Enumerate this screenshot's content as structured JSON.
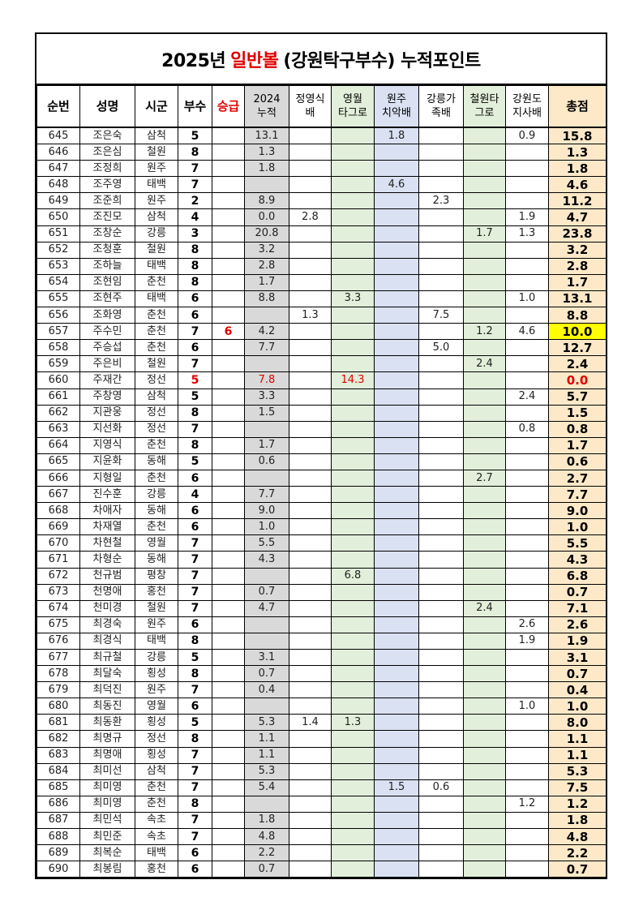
{
  "title": {
    "year": "2025년",
    "highlight": "일반볼",
    "rest": "(강원탁구부수) 누적포인트"
  },
  "colors": {
    "accent_red": "#e00000",
    "col_2024": "#d9d9d9",
    "col_green": "#e2efda",
    "col_blue": "#d9e1f2",
    "col_total": "#fde9c8",
    "highlight_yellow": "#ffff00"
  },
  "headers": [
    {
      "line1": "순번",
      "line2": ""
    },
    {
      "line1": "성명",
      "line2": ""
    },
    {
      "line1": "시군",
      "line2": ""
    },
    {
      "line1": "부수",
      "line2": ""
    },
    {
      "line1": "승급",
      "line2": ""
    },
    {
      "line1": "2024",
      "line2": "누적"
    },
    {
      "line1": "정영식",
      "line2": "배"
    },
    {
      "line1": "영월",
      "line2": "타그로"
    },
    {
      "line1": "원주",
      "line2": "치악배"
    },
    {
      "line1": "강릉가",
      "line2": "족배"
    },
    {
      "line1": "철원타",
      "line2": "그로"
    },
    {
      "line1": "강원도",
      "line2": "지사배"
    },
    {
      "line1": "총점",
      "line2": ""
    }
  ],
  "rows": [
    [
      "645",
      "조은숙",
      "삼척",
      "5",
      "",
      "13.1",
      "",
      "",
      "1.8",
      "",
      "",
      "0.9",
      "15.8"
    ],
    [
      "646",
      "조은심",
      "철원",
      "8",
      "",
      "1.3",
      "",
      "",
      "",
      "",
      "",
      "",
      "1.3"
    ],
    [
      "647",
      "조정희",
      "원주",
      "7",
      "",
      "1.8",
      "",
      "",
      "",
      "",
      "",
      "",
      "1.8"
    ],
    [
      "648",
      "조주영",
      "태백",
      "7",
      "",
      "",
      "",
      "",
      "4.6",
      "",
      "",
      "",
      "4.6"
    ],
    [
      "649",
      "조준희",
      "원주",
      "2",
      "",
      "8.9",
      "",
      "",
      "",
      "2.3",
      "",
      "",
      "11.2"
    ],
    [
      "650",
      "조진모",
      "삼척",
      "4",
      "",
      "0.0",
      "2.8",
      "",
      "",
      "",
      "",
      "1.9",
      "4.7"
    ],
    [
      "651",
      "조창순",
      "강릉",
      "3",
      "",
      "20.8",
      "",
      "",
      "",
      "",
      "1.7",
      "1.3",
      "23.8"
    ],
    [
      "652",
      "조청훈",
      "철원",
      "8",
      "",
      "3.2",
      "",
      "",
      "",
      "",
      "",
      "",
      "3.2"
    ],
    [
      "653",
      "조하늘",
      "태백",
      "8",
      "",
      "2.8",
      "",
      "",
      "",
      "",
      "",
      "",
      "2.8"
    ],
    [
      "654",
      "조현임",
      "춘천",
      "8",
      "",
      "1.7",
      "",
      "",
      "",
      "",
      "",
      "",
      "1.7"
    ],
    [
      "655",
      "조현주",
      "태백",
      "6",
      "",
      "8.8",
      "",
      "3.3",
      "",
      "",
      "",
      "1.0",
      "13.1"
    ],
    [
      "656",
      "조화영",
      "춘천",
      "6",
      "",
      "",
      "1.3",
      "",
      "",
      "7.5",
      "",
      "",
      "8.8"
    ],
    [
      "657",
      "주수민",
      "춘천",
      "7",
      "6",
      "4.2",
      "",
      "",
      "",
      "",
      "1.2",
      "4.6",
      "10.0"
    ],
    [
      "658",
      "주승섭",
      "춘천",
      "6",
      "",
      "7.7",
      "",
      "",
      "",
      "5.0",
      "",
      "",
      "12.7"
    ],
    [
      "659",
      "주은비",
      "철원",
      "7",
      "",
      "",
      "",
      "",
      "",
      "",
      "2.4",
      "",
      "2.4"
    ],
    [
      "660",
      "주재간",
      "정선",
      "5",
      "",
      "7.8",
      "",
      "14.3",
      "",
      "",
      "",
      "",
      "0.0"
    ],
    [
      "661",
      "주창영",
      "삼척",
      "5",
      "",
      "3.3",
      "",
      "",
      "",
      "",
      "",
      "2.4",
      "5.7"
    ],
    [
      "662",
      "지관웅",
      "정선",
      "8",
      "",
      "1.5",
      "",
      "",
      "",
      "",
      "",
      "",
      "1.5"
    ],
    [
      "663",
      "지선화",
      "정선",
      "7",
      "",
      "",
      "",
      "",
      "",
      "",
      "",
      "0.8",
      "0.8"
    ],
    [
      "664",
      "지영식",
      "춘천",
      "8",
      "",
      "1.7",
      "",
      "",
      "",
      "",
      "",
      "",
      "1.7"
    ],
    [
      "665",
      "지윤화",
      "동해",
      "5",
      "",
      "0.6",
      "",
      "",
      "",
      "",
      "",
      "",
      "0.6"
    ],
    [
      "666",
      "지형일",
      "춘천",
      "6",
      "",
      "",
      "",
      "",
      "",
      "",
      "2.7",
      "",
      "2.7"
    ],
    [
      "667",
      "진수훈",
      "강릉",
      "4",
      "",
      "7.7",
      "",
      "",
      "",
      "",
      "",
      "",
      "7.7"
    ],
    [
      "668",
      "차애자",
      "동해",
      "6",
      "",
      "9.0",
      "",
      "",
      "",
      "",
      "",
      "",
      "9.0"
    ],
    [
      "669",
      "차재열",
      "춘천",
      "6",
      "",
      "1.0",
      "",
      "",
      "",
      "",
      "",
      "",
      "1.0"
    ],
    [
      "670",
      "차현철",
      "영월",
      "7",
      "",
      "5.5",
      "",
      "",
      "",
      "",
      "",
      "",
      "5.5"
    ],
    [
      "671",
      "차형순",
      "동해",
      "7",
      "",
      "4.3",
      "",
      "",
      "",
      "",
      "",
      "",
      "4.3"
    ],
    [
      "672",
      "천규범",
      "평창",
      "7",
      "",
      "",
      "",
      "6.8",
      "",
      "",
      "",
      "",
      "6.8"
    ],
    [
      "673",
      "천명애",
      "홍천",
      "7",
      "",
      "0.7",
      "",
      "",
      "",
      "",
      "",
      "",
      "0.7"
    ],
    [
      "674",
      "천미경",
      "철원",
      "7",
      "",
      "4.7",
      "",
      "",
      "",
      "",
      "2.4",
      "",
      "7.1"
    ],
    [
      "675",
      "최경숙",
      "원주",
      "6",
      "",
      "",
      "",
      "",
      "",
      "",
      "",
      "2.6",
      "2.6"
    ],
    [
      "676",
      "최경식",
      "태백",
      "8",
      "",
      "",
      "",
      "",
      "",
      "",
      "",
      "1.9",
      "1.9"
    ],
    [
      "677",
      "최규철",
      "강릉",
      "5",
      "",
      "3.1",
      "",
      "",
      "",
      "",
      "",
      "",
      "3.1"
    ],
    [
      "678",
      "최달숙",
      "횡성",
      "8",
      "",
      "0.7",
      "",
      "",
      "",
      "",
      "",
      "",
      "0.7"
    ],
    [
      "679",
      "최덕진",
      "원주",
      "7",
      "",
      "0.4",
      "",
      "",
      "",
      "",
      "",
      "",
      "0.4"
    ],
    [
      "680",
      "최동진",
      "영월",
      "6",
      "",
      "",
      "",
      "",
      "",
      "",
      "",
      "1.0",
      "1.0"
    ],
    [
      "681",
      "최동환",
      "횡성",
      "5",
      "",
      "5.3",
      "1.4",
      "1.3",
      "",
      "",
      "",
      "",
      "8.0"
    ],
    [
      "682",
      "최명규",
      "정선",
      "8",
      "",
      "1.1",
      "",
      "",
      "",
      "",
      "",
      "",
      "1.1"
    ],
    [
      "683",
      "최명애",
      "횡성",
      "7",
      "",
      "1.1",
      "",
      "",
      "",
      "",
      "",
      "",
      "1.1"
    ],
    [
      "684",
      "최미선",
      "삼척",
      "7",
      "",
      "5.3",
      "",
      "",
      "",
      "",
      "",
      "",
      "5.3"
    ],
    [
      "685",
      "최미영",
      "춘천",
      "7",
      "",
      "5.4",
      "",
      "",
      "1.5",
      "0.6",
      "",
      "",
      "7.5"
    ],
    [
      "686",
      "최미영",
      "춘천",
      "8",
      "",
      "",
      "",
      "",
      "",
      "",
      "",
      "1.2",
      "1.2"
    ],
    [
      "687",
      "최민석",
      "속초",
      "7",
      "",
      "1.8",
      "",
      "",
      "",
      "",
      "",
      "",
      "1.8"
    ],
    [
      "688",
      "최민준",
      "속초",
      "7",
      "",
      "4.8",
      "",
      "",
      "",
      "",
      "",
      "",
      "4.8"
    ],
    [
      "689",
      "최복순",
      "태백",
      "6",
      "",
      "2.2",
      "",
      "",
      "",
      "",
      "",
      "",
      "2.2"
    ],
    [
      "690",
      "최봉림",
      "홍천",
      "6",
      "",
      "0.7",
      "",
      "",
      "",
      "",
      "",
      "",
      "0.7"
    ]
  ],
  "highlighted_rows": {
    "red_text": [
      "660"
    ],
    "yellow_total": [
      "657"
    ]
  }
}
